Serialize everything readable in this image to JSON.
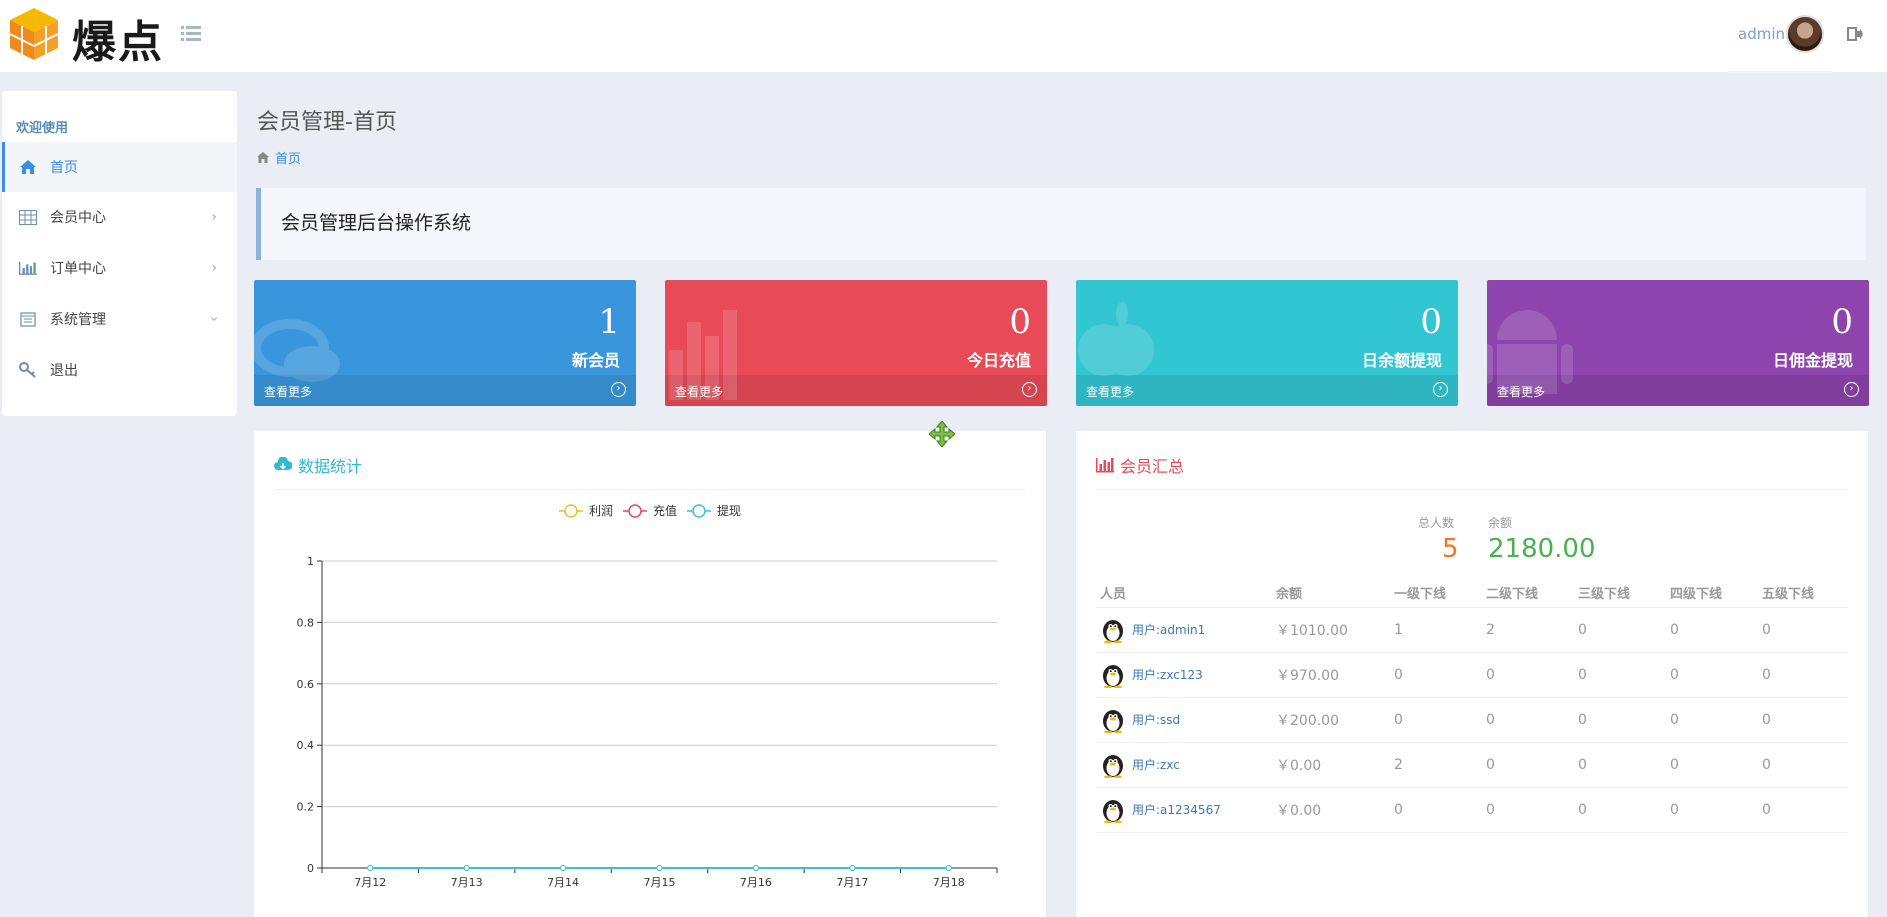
{
  "header": {
    "logo_text": "爆点",
    "admin_name": "admin"
  },
  "sidebar": {
    "title": "欢迎使用",
    "items": [
      {
        "label": "首页",
        "icon": "home-icon",
        "active": true
      },
      {
        "label": "会员中心",
        "icon": "table-icon"
      },
      {
        "label": "订单中心",
        "icon": "bar-chart-icon"
      },
      {
        "label": "系统管理",
        "icon": "calendar-icon"
      },
      {
        "label": "退出",
        "icon": "key-icon"
      }
    ]
  },
  "page": {
    "title": "会员管理-首页",
    "breadcrumb": "首页",
    "callout": "会员管理后台操作系统"
  },
  "stats": [
    {
      "value": "1",
      "label": "新会员",
      "more": "查看更多",
      "color": "#3a96dc"
    },
    {
      "value": "0",
      "label": "今日充值",
      "more": "查看更多",
      "color": "#e84b57"
    },
    {
      "value": "0",
      "label": "日余额提现",
      "more": "查看更多",
      "color": "#32c5d2"
    },
    {
      "value": "0",
      "label": "日佣金提现",
      "more": "查看更多",
      "color": "#8e44ad"
    }
  ],
  "data_panel": {
    "title": "数据统计"
  },
  "chart_data": {
    "type": "line",
    "categories": [
      "7月12",
      "7月13",
      "7月14",
      "7月15",
      "7月16",
      "7月17",
      "7月18"
    ],
    "series": [
      {
        "name": "利润",
        "values": [
          0,
          0,
          0,
          0,
          0,
          0,
          0
        ],
        "color": "#e6c229"
      },
      {
        "name": "充值",
        "values": [
          0,
          0,
          0,
          0,
          0,
          0,
          0
        ],
        "color": "#e84b57"
      },
      {
        "name": "提现",
        "values": [
          0,
          0,
          0,
          0,
          0,
          0,
          0
        ],
        "color": "#32c5d2"
      }
    ],
    "yticks": [
      "0",
      "0.2",
      "0.4",
      "0.6",
      "0.8",
      "1"
    ],
    "ylim": [
      0,
      1
    ],
    "grid": true,
    "legend": "top-center"
  },
  "summary_panel": {
    "title": "会员汇总",
    "total_label": "总人数",
    "total_value": "5",
    "balance_label": "余额",
    "balance_value": "2180.00",
    "columns": [
      "人员",
      "余额",
      "一级下线",
      "二级下线",
      "三级下线",
      "四级下线",
      "五级下线"
    ],
    "rows": [
      {
        "user": "用户:admin1",
        "balance": "￥1010.00",
        "l1": "1",
        "l2": "2",
        "l3": "0",
        "l4": "0",
        "l5": "0"
      },
      {
        "user": "用户:zxc123",
        "balance": "￥970.00",
        "l1": "0",
        "l2": "0",
        "l3": "0",
        "l4": "0",
        "l5": "0"
      },
      {
        "user": "用户:ssd",
        "balance": "￥200.00",
        "l1": "0",
        "l2": "0",
        "l3": "0",
        "l4": "0",
        "l5": "0"
      },
      {
        "user": "用户:zxc",
        "balance": "￥0.00",
        "l1": "2",
        "l2": "0",
        "l3": "0",
        "l4": "0",
        "l5": "0"
      },
      {
        "user": "用户:a1234567",
        "balance": "￥0.00",
        "l1": "0",
        "l2": "0",
        "l3": "0",
        "l4": "0",
        "l5": "0"
      }
    ]
  }
}
